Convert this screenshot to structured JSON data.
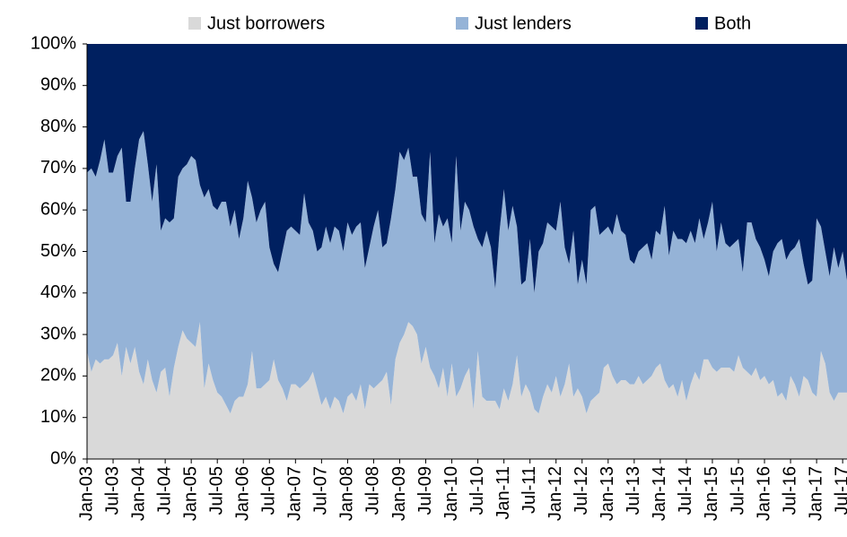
{
  "chart_data": {
    "type": "stacked_area",
    "categories": [
      "Jan-03",
      null,
      null,
      null,
      null,
      null,
      "Jul-03",
      null,
      null,
      null,
      null,
      null,
      "Jan-04",
      null,
      null,
      null,
      null,
      null,
      "Jul-04",
      null,
      null,
      null,
      null,
      null,
      "Jan-05",
      null,
      null,
      null,
      null,
      null,
      "Jul-05",
      null,
      null,
      null,
      null,
      null,
      "Jan-06",
      null,
      null,
      null,
      null,
      null,
      "Jul-06",
      null,
      null,
      null,
      null,
      null,
      "Jan-07",
      null,
      null,
      null,
      null,
      null,
      "Jul-07",
      null,
      null,
      null,
      null,
      null,
      "Jan-08",
      null,
      null,
      null,
      null,
      null,
      "Jul-08",
      null,
      null,
      null,
      null,
      null,
      "Jan-09",
      null,
      null,
      null,
      null,
      null,
      "Jul-09",
      null,
      null,
      null,
      null,
      null,
      "Jan-10",
      null,
      null,
      null,
      null,
      null,
      "Jul-10",
      null,
      null,
      null,
      null,
      null,
      "Jan-11",
      null,
      null,
      null,
      null,
      null,
      "Jul-11",
      null,
      null,
      null,
      null,
      null,
      "Jan-12",
      null,
      null,
      null,
      null,
      null,
      "Jul-12",
      null,
      null,
      null,
      null,
      null,
      "Jan-13",
      null,
      null,
      null,
      null,
      null,
      "Jul-13",
      null,
      null,
      null,
      null,
      null,
      "Jan-14",
      null,
      null,
      null,
      null,
      null,
      "Jul-14",
      null,
      null,
      null,
      null,
      null,
      "Jan-15",
      null,
      null,
      null,
      null,
      null,
      "Jul-15",
      null,
      null,
      null,
      null,
      null,
      "Jan-16",
      null,
      null,
      null,
      null,
      null,
      "Jul-16",
      null,
      null,
      null,
      null,
      null,
      "Jan-17",
      null,
      null,
      null,
      null,
      null,
      "Jul-17",
      null
    ],
    "series": [
      {
        "name": "Just borrowers",
        "color": "#d9d9d9",
        "values": [
          26,
          21,
          24,
          23,
          24,
          24,
          25,
          28,
          20,
          27,
          23,
          27,
          21,
          18,
          24,
          19,
          16,
          21,
          22,
          15,
          22,
          27,
          31,
          29,
          28,
          27,
          33,
          17,
          23,
          19,
          16,
          15,
          13,
          11,
          14,
          15,
          15,
          18,
          26,
          17,
          17,
          18,
          19,
          24,
          19,
          17,
          14,
          18,
          18,
          17,
          18,
          19,
          21,
          17,
          13,
          15,
          12,
          15,
          14,
          11,
          15,
          16,
          14,
          18,
          12,
          18,
          17,
          18,
          19,
          21,
          13,
          24,
          28,
          30,
          33,
          32,
          30,
          23,
          27,
          22,
          20,
          17,
          22,
          15,
          23,
          15,
          17,
          20,
          22,
          12,
          26,
          15,
          14,
          14,
          14,
          12,
          17,
          14,
          18,
          25,
          15,
          18,
          16,
          12,
          11,
          15,
          18,
          16,
          20,
          15,
          18,
          23,
          15,
          17,
          15,
          11,
          14,
          15,
          16,
          22,
          23,
          20,
          18,
          19,
          19,
          18,
          18,
          20,
          18,
          19,
          20,
          22,
          23,
          19,
          17,
          18,
          15,
          19,
          14,
          18,
          21,
          19,
          24,
          24,
          22,
          21,
          22,
          22,
          22,
          21,
          25,
          22,
          21,
          20,
          22,
          19,
          20,
          18,
          19,
          15,
          16,
          14,
          20,
          18,
          15,
          20,
          19,
          16,
          15,
          26,
          23,
          16,
          14,
          16,
          16,
          16
        ]
      },
      {
        "name": "Just lenders",
        "color": "#95b3d7",
        "values": [
          43,
          49,
          44,
          49,
          53,
          45,
          44,
          45,
          55,
          35,
          39,
          43,
          56,
          61,
          47,
          43,
          55,
          34,
          36,
          42,
          36,
          41,
          39,
          42,
          45,
          45,
          33,
          46,
          42,
          42,
          44,
          47,
          49,
          45,
          46,
          38,
          43,
          49,
          37,
          40,
          43,
          44,
          32,
          23,
          26,
          33,
          41,
          38,
          37,
          37,
          46,
          38,
          34,
          33,
          38,
          41,
          40,
          41,
          41,
          39,
          42,
          38,
          42,
          39,
          34,
          33,
          39,
          42,
          32,
          31,
          45,
          41,
          46,
          42,
          42,
          36,
          38,
          36,
          30,
          52,
          32,
          42,
          34,
          43,
          29,
          58,
          38,
          42,
          38,
          44,
          27,
          36,
          41,
          37,
          27,
          43,
          48,
          41,
          43,
          31,
          27,
          25,
          37,
          28,
          39,
          37,
          39,
          40,
          35,
          47,
          33,
          24,
          40,
          25,
          33,
          31,
          46,
          46,
          38,
          33,
          33,
          34,
          41,
          36,
          35,
          30,
          29,
          30,
          33,
          33,
          28,
          33,
          31,
          42,
          32,
          37,
          38,
          34,
          38,
          37,
          31,
          39,
          29,
          33,
          40,
          29,
          35,
          30,
          29,
          31,
          28,
          23,
          36,
          37,
          31,
          32,
          28,
          26,
          31,
          37,
          37,
          34,
          30,
          33,
          38,
          27,
          23,
          27,
          43,
          30,
          27,
          28,
          37,
          30,
          34,
          27
        ]
      },
      {
        "name": "Both",
        "color": "#002060",
        "values": [
          31,
          30,
          32,
          28,
          23,
          31,
          31,
          27,
          25,
          38,
          38,
          30,
          23,
          21,
          29,
          38,
          29,
          45,
          42,
          43,
          42,
          32,
          30,
          29,
          27,
          28,
          34,
          37,
          35,
          39,
          40,
          38,
          38,
          44,
          40,
          47,
          42,
          33,
          37,
          43,
          40,
          38,
          49,
          53,
          55,
          50,
          45,
          44,
          45,
          46,
          36,
          43,
          45,
          50,
          49,
          44,
          48,
          44,
          45,
          50,
          43,
          46,
          44,
          43,
          54,
          49,
          44,
          40,
          49,
          48,
          42,
          35,
          26,
          28,
          25,
          32,
          32,
          41,
          43,
          26,
          48,
          41,
          44,
          42,
          48,
          27,
          45,
          38,
          40,
          44,
          47,
          49,
          45,
          49,
          59,
          45,
          35,
          45,
          39,
          44,
          58,
          57,
          47,
          60,
          50,
          48,
          43,
          44,
          45,
          38,
          49,
          53,
          45,
          58,
          52,
          58,
          40,
          39,
          46,
          45,
          44,
          46,
          41,
          45,
          46,
          52,
          53,
          50,
          49,
          48,
          52,
          45,
          46,
          39,
          51,
          45,
          47,
          47,
          48,
          45,
          48,
          42,
          47,
          43,
          38,
          50,
          43,
          48,
          49,
          48,
          47,
          55,
          43,
          43,
          47,
          49,
          52,
          56,
          50,
          48,
          47,
          52,
          50,
          49,
          47,
          53,
          58,
          57,
          42,
          44,
          50,
          56,
          49,
          54,
          50,
          57
        ]
      }
    ],
    "ylim": [
      0,
      100
    ],
    "yticks": [
      {
        "value": 0,
        "label": "0%"
      },
      {
        "value": 10,
        "label": "10%"
      },
      {
        "value": 20,
        "label": "20%"
      },
      {
        "value": 30,
        "label": "30%"
      },
      {
        "value": 40,
        "label": "40%"
      },
      {
        "value": 50,
        "label": "50%"
      },
      {
        "value": 60,
        "label": "60%"
      },
      {
        "value": 70,
        "label": "70%"
      },
      {
        "value": 80,
        "label": "80%"
      },
      {
        "value": 90,
        "label": "90%"
      },
      {
        "value": 100,
        "label": "100%"
      }
    ],
    "legend": "top"
  }
}
